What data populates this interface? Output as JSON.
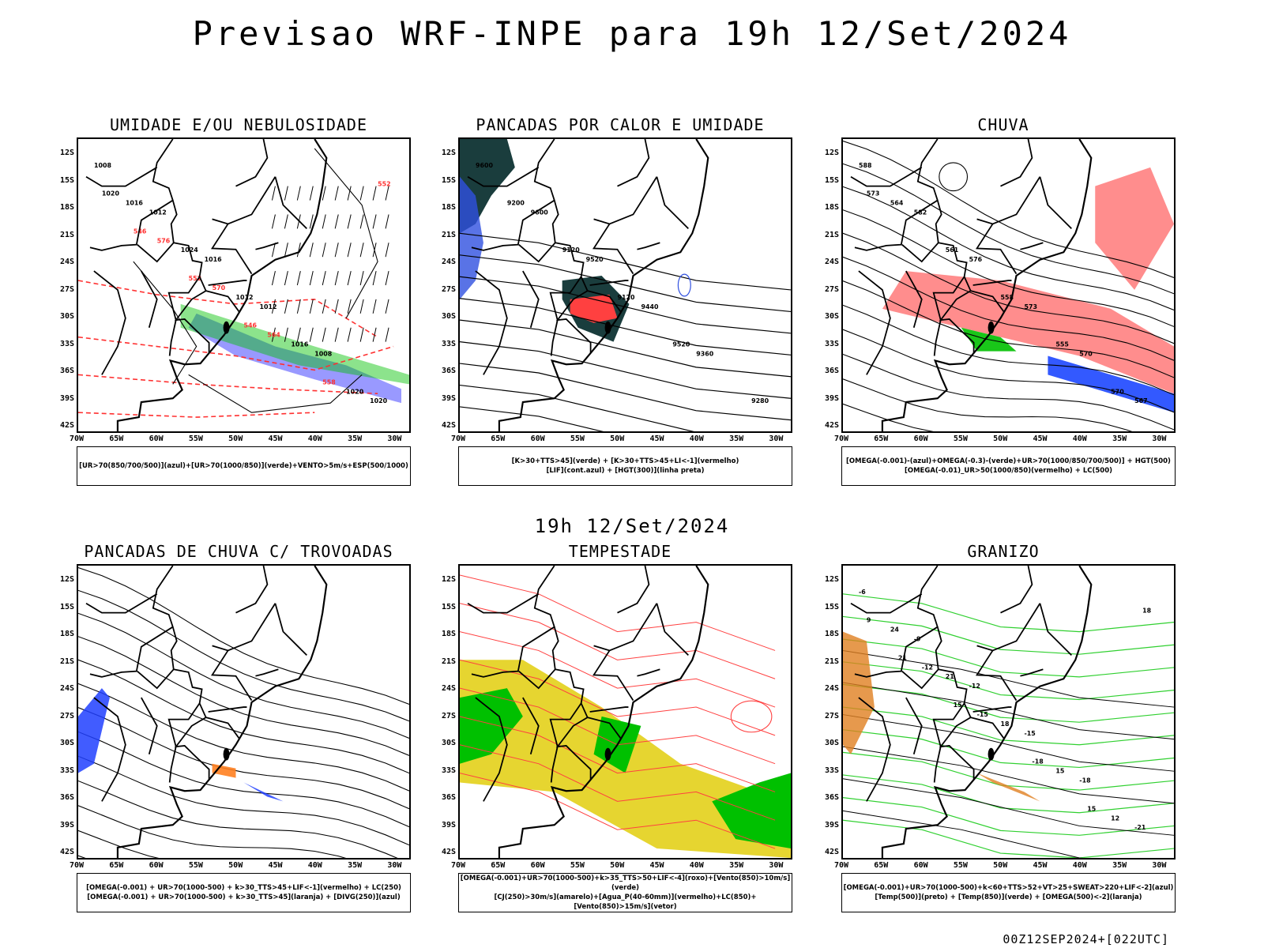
{
  "header": {
    "title": "Previsao WRF-INPE  para 19h 12/Set/2024"
  },
  "mid_time": "19h 12/Set/2024",
  "footer": "00Z12SEP2024+[022UTC]",
  "lat_labels": [
    "12S",
    "15S",
    "18S",
    "21S",
    "24S",
    "27S",
    "30S",
    "33S",
    "36S",
    "39S",
    "42S"
  ],
  "lon_labels": [
    "70W",
    "65W",
    "60W",
    "55W",
    "50W",
    "45W",
    "40W",
    "35W",
    "30W"
  ],
  "panels": [
    {
      "title": "UMIDADE E/OU NEBULOSIDADE",
      "legend": [
        "[UR>70(850/700/500)](azul)+[UR>70(1000/850)](verde)+VENTO>5m/s+ESP(500/1000)"
      ],
      "contour_labels": [
        "1008",
        "1012",
        "1016",
        "1012",
        "1008",
        "1020",
        "1016",
        "1024",
        "1012",
        "1016",
        "1020",
        "1020",
        "576",
        "570",
        "564",
        "558",
        "552",
        "546",
        "552",
        "546"
      ]
    },
    {
      "title": "PANCADAS POR CALOR E UMIDADE",
      "legend": [
        "[K>30+TTS>45](verde) + [K>30+TTS>45+LI<-1](vermelho)",
        "[LIF](cont.azul) + [HGT(300)](linha preta)"
      ],
      "contour_labels": [
        "9600",
        "9600",
        "9520",
        "9440",
        "9360",
        "9280",
        "9200",
        "9120",
        "9120",
        "9520"
      ]
    },
    {
      "title": "CHUVA",
      "legend": [
        "[OMEGA(-0.001)-(azul)+OMEGA(-0.3)-(verde)+UR>70(1000/850/700/500)] + HGT(500)",
        "[OMEGA(-0.01)_UR>50(1000/850)(vermelho) + LC(500)"
      ],
      "contour_labels": [
        "588",
        "582",
        "576",
        "573",
        "570",
        "567",
        "564",
        "561",
        "558",
        "555",
        "570",
        "573"
      ]
    },
    {
      "title": "PANCADAS DE CHUVA C/ TROVOADAS",
      "legend": [
        "[OMEGA(-0.001) + UR>70(1000-500) + k>30_TTS>45+LIF<-1](vermelho) + LC(250)",
        "[OMEGA(-0.001) + UR>70(1000-500) + k>30_TTS>45](laranja) + [DIVG(250)](azul)"
      ],
      "contour_labels": []
    },
    {
      "title": "TEMPESTADE",
      "legend": [
        "[OMEGA(-0.001)+UR>70(1000-500)+k>35_TTS>50+LIF<-4](roxo)+[Vento(850)>10m/s](verde)",
        "[CJ(250)>30m/s](amarelo)+[Agua_P(40-60mm)](vermelho)+LC(850)+[Vento(850)>15m/s](vetor)"
      ],
      "contour_labels": []
    },
    {
      "title": "GRANIZO",
      "legend": [
        "[OMEGA(-0.001)+UR>70(1000-500)+k<60+TTS>52+VT>25+SWEAT>220+LIF<-2](azul)",
        "[Temp(500)](preto) + [Temp(850)](verde) + [OMEGA(500)<-2](laranja)"
      ],
      "contour_labels": [
        "-6",
        "-9",
        "-12",
        "-15",
        "-18",
        "-21",
        "24",
        "21",
        "18",
        "15",
        "12",
        "9",
        "-12",
        "-15",
        "-18",
        "15",
        "18",
        "21",
        "15"
      ]
    }
  ]
}
